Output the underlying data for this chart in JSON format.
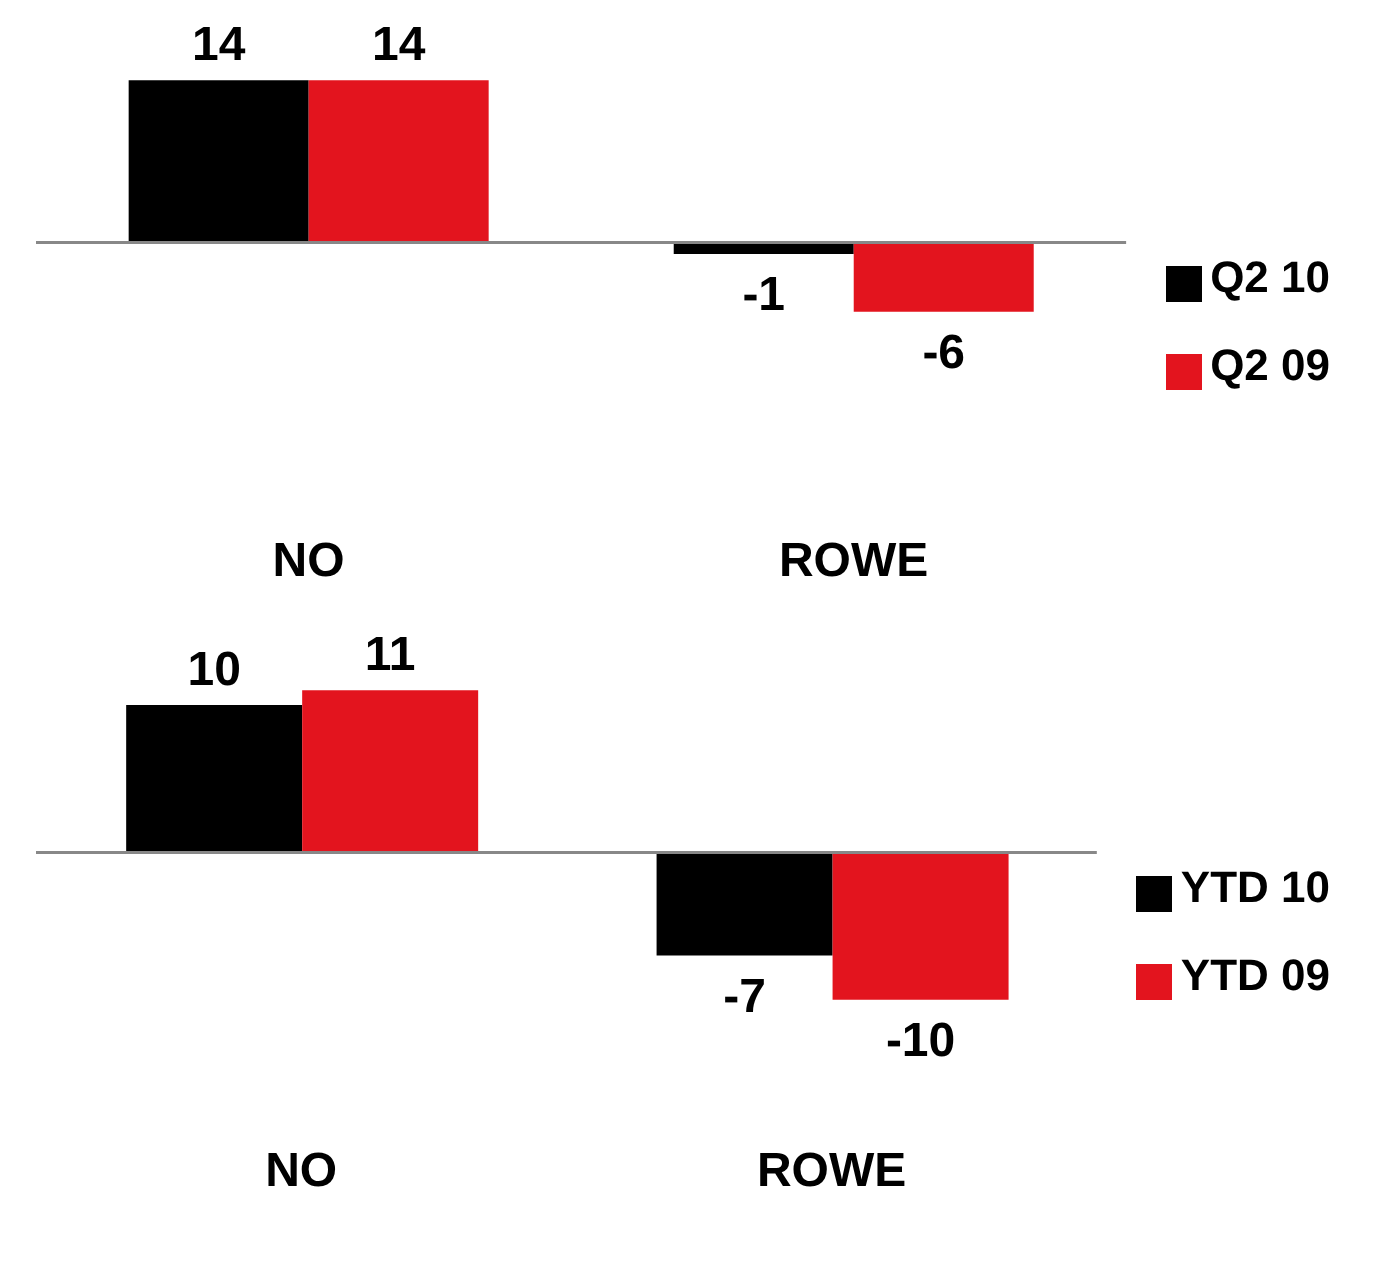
{
  "chart_data": [
    {
      "type": "bar",
      "categories": [
        "NO",
        "ROWE"
      ],
      "series": [
        {
          "name": "Q2 10",
          "color": "#000000",
          "values": [
            14,
            -1
          ]
        },
        {
          "name": "Q2 09",
          "color": "#e3141e",
          "values": [
            14,
            -6
          ]
        }
      ],
      "data_labels": true,
      "legend": "right"
    },
    {
      "type": "bar",
      "categories": [
        "NO",
        "ROWE"
      ],
      "series": [
        {
          "name": "YTD 10",
          "color": "#000000",
          "values": [
            10,
            -7
          ]
        },
        {
          "name": "YTD 09",
          "color": "#e3141e",
          "values": [
            11,
            -10
          ]
        }
      ],
      "data_labels": true,
      "legend": "right"
    }
  ]
}
